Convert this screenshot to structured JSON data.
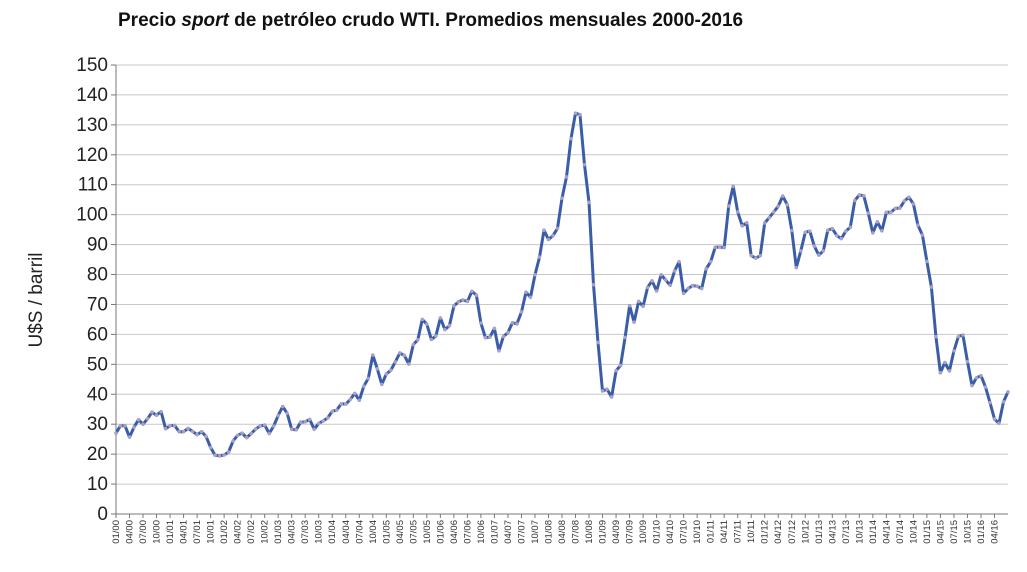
{
  "chart_data": {
    "type": "line",
    "title_parts": {
      "before": "Precio ",
      "italic": "sport",
      "after": " de petróleo crudo WTI. Promedios mensuales 2000-2016"
    },
    "ylabel": "U$S / barril",
    "xlabel": "",
    "ylim": [
      0,
      150
    ],
    "yticks": [
      0,
      10,
      20,
      30,
      40,
      50,
      60,
      70,
      80,
      90,
      100,
      110,
      120,
      130,
      140,
      150
    ],
    "grid": true,
    "legend": "none",
    "line_color": "#3a5da8",
    "marker_color": "#a9a0c8",
    "x_tick_labels": [
      "01/00",
      "04/00",
      "07/00",
      "10/00",
      "01/01",
      "04/01",
      "07/01",
      "10/01",
      "01/02",
      "04/02",
      "07/02",
      "10/02",
      "01/03",
      "04/03",
      "07/03",
      "10/03",
      "01/04",
      "04/04",
      "07/04",
      "10/04",
      "01/05",
      "04/05",
      "07/05",
      "10/05",
      "01/06",
      "04/06",
      "07/06",
      "10/06",
      "01/07",
      "04/07",
      "07/07",
      "10/07",
      "01/08",
      "04/08",
      "07/08",
      "10/08",
      "01/09",
      "04/09",
      "07/09",
      "10/09",
      "01/10",
      "04/10",
      "07/10",
      "10/10",
      "01/11",
      "04/11",
      "07/11",
      "10/11",
      "01/12",
      "04/12",
      "07/12",
      "10/12",
      "01/13",
      "04/13",
      "07/13",
      "10/13",
      "01/14",
      "04/14",
      "07/14",
      "10/14",
      "01/15",
      "04/15",
      "07/15",
      "10/15",
      "01/16",
      "04/16"
    ],
    "series": [
      {
        "values": [
          27,
          29.5,
          29.5,
          25.7,
          29,
          31.5,
          30,
          31.8,
          34,
          33,
          34.2,
          28.5,
          29.5,
          29.6,
          27.5,
          27.5,
          28.6,
          27.6,
          26.5,
          27.5,
          25.9,
          22.2,
          19.6,
          19.4,
          19.7,
          20.7,
          24.4,
          26.3,
          27,
          25.5,
          26.9,
          28.4,
          29.4,
          29.7,
          26.9,
          29.4,
          32.9,
          35.9,
          33.6,
          28.3,
          28.1,
          30.7,
          30.8,
          31.6,
          28.3,
          30.3,
          31.1,
          32.1,
          34.3,
          34.7,
          36.8,
          36.7,
          38.3,
          40.3,
          38,
          42.7,
          45.3,
          53.1,
          48.5,
          43.3,
          46.8,
          48,
          50.8,
          53.8,
          53,
          50.1,
          56.6,
          58.2,
          65,
          63.4,
          58.3,
          59.5,
          65.5,
          61.6,
          62.9,
          69.5,
          70.9,
          71.5,
          71,
          74.4,
          73.1,
          63.8,
          58.9,
          59.1,
          62,
          54.5,
          59.3,
          60.6,
          63.9,
          63.5,
          67.5,
          74.1,
          72.4,
          79.9,
          85.8,
          94.8,
          91.7,
          93,
          95.4,
          105.5,
          112.6,
          125.4,
          133.9,
          133.4,
          116.7,
          104.1,
          76.6,
          57.3,
          41.1,
          41.7,
          39.1,
          47.9,
          49.6,
          59,
          69.6,
          64.1,
          71,
          69.4,
          75.7,
          77.9,
          74.5,
          79.9,
          78.2,
          76.4,
          81.2,
          84.3,
          73.7,
          75.3,
          76.3,
          76.1,
          75.3,
          81.9,
          84.3,
          89.1,
          89.2,
          89,
          102.9,
          109.5,
          100.9,
          96.3,
          97.3,
          86.3,
          85.5,
          86.3,
          97.2,
          99,
          100.9,
          102.8,
          106.2,
          103.3,
          94.7,
          82.3,
          87.9,
          94.1,
          94.5,
          89.5,
          86.5,
          87.9,
          94.8,
          95.3,
          93,
          92,
          94.5,
          95.8,
          104.7,
          106.6,
          106.3,
          100.5,
          93.9,
          97.6,
          94.6,
          100.8,
          100.8,
          102.1,
          102.2,
          104.6,
          105.8,
          103.6,
          96.5,
          93.2,
          84.4,
          75.8,
          59.3,
          47.2,
          50.6,
          47.8,
          54.5,
          59.3,
          59.8,
          50.9,
          42.9,
          45.5,
          46.2,
          42.4,
          37.2,
          31.7,
          30.3,
          37.5,
          40.8
        ]
      }
    ]
  }
}
